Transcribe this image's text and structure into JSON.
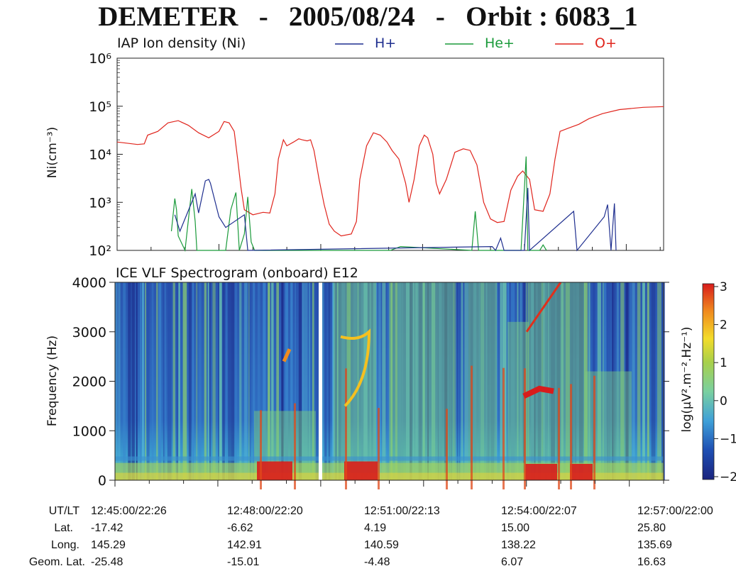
{
  "title": "DEMETER   -   2005/08/24   -   Orbit : 6083_1",
  "ion_panel": {
    "label": "IAP Ion density (Ni)",
    "ylabel": "Ni(cm⁻³)",
    "legend": [
      {
        "name": "H+",
        "color": "#1f2f8f"
      },
      {
        "name": "He+",
        "color": "#1a9a3a"
      },
      {
        "name": "O+",
        "color": "#e0241c"
      }
    ]
  },
  "spec_panel": {
    "label": "ICE VLF Spectrogram (onboard) E12",
    "ylabel": "Frequency (Hz)",
    "colorbar_label": "log(µV².m⁻².Hz⁻¹)",
    "colorbar_ticks": [
      "3",
      "2",
      "1",
      "0",
      "−1",
      "−2"
    ]
  },
  "info_table": {
    "row_labels": [
      "UT/LT",
      "Lat.",
      "Long.",
      "Geom. Lat."
    ],
    "columns": [
      {
        "time": "12:45:00/22:26",
        "lat": "-17.42",
        "long": "145.29",
        "geom": "-25.48"
      },
      {
        "time": "12:48:00/22:20",
        "lat": "-6.62",
        "long": "142.91",
        "geom": "-15.01"
      },
      {
        "time": "12:51:00/22:13",
        "lat": "4.19",
        "long": "140.59",
        "geom": "-4.48"
      },
      {
        "time": "12:54:00/22:07",
        "lat": "15.00",
        "long": "138.22",
        "geom": "6.07"
      },
      {
        "time": "12:57:00/22:00",
        "lat": "25.80",
        "long": "135.69",
        "geom": "16.63"
      }
    ]
  },
  "chart_data": [
    {
      "type": "line",
      "title": "IAP Ion density (Ni)",
      "ylabel": "Ni(cm⁻³)",
      "yscale": "log",
      "ylim": [
        100,
        1000000
      ],
      "y_ticks": [
        "10²",
        "10³",
        "10⁴",
        "10⁵",
        "10⁶"
      ],
      "xlim_minutes": [
        0,
        12
      ],
      "series": [
        {
          "name": "O+",
          "color": "#e0241c",
          "points": [
            [
              0,
              18000
            ],
            [
              0.6,
              16000
            ],
            [
              0.8,
              16500
            ],
            [
              0.9,
              25000
            ],
            [
              1.2,
              30000
            ],
            [
              1.5,
              45000
            ],
            [
              1.8,
              50000
            ],
            [
              2.1,
              40000
            ],
            [
              2.4,
              28000
            ],
            [
              2.7,
              22000
            ],
            [
              3.0,
              30000
            ],
            [
              3.15,
              48000
            ],
            [
              3.3,
              45000
            ],
            [
              3.45,
              30000
            ],
            [
              3.55,
              8000
            ],
            [
              3.65,
              2000
            ],
            [
              3.75,
              700
            ],
            [
              4.0,
              550
            ],
            [
              4.3,
              620
            ],
            [
              4.5,
              600
            ],
            [
              4.65,
              1500
            ],
            [
              4.75,
              8000
            ],
            [
              4.9,
              20000
            ],
            [
              5.0,
              15000
            ],
            [
              5.2,
              18000
            ],
            [
              5.35,
              21000
            ],
            [
              5.45,
              20000
            ],
            [
              5.6,
              19000
            ],
            [
              5.7,
              20000
            ],
            [
              5.8,
              12000
            ],
            [
              5.95,
              3000
            ],
            [
              6.1,
              900
            ],
            [
              6.25,
              350
            ],
            [
              6.4,
              250
            ],
            [
              6.6,
              200
            ],
            [
              6.9,
              220
            ],
            [
              7.05,
              400
            ],
            [
              7.15,
              3000
            ],
            [
              7.35,
              15000
            ],
            [
              7.55,
              28000
            ],
            [
              7.75,
              25000
            ],
            [
              7.95,
              18000
            ],
            [
              8.1,
              12000
            ],
            [
              8.3,
              8000
            ],
            [
              8.5,
              2500
            ],
            [
              8.6,
              1000
            ],
            [
              8.75,
              3000
            ],
            [
              8.9,
              15000
            ],
            [
              9.05,
              25000
            ],
            [
              9.15,
              22000
            ],
            [
              9.3,
              10000
            ],
            [
              9.4,
              2500
            ],
            [
              9.5,
              1500
            ],
            [
              9.7,
              3000
            ],
            [
              9.95,
              11000
            ],
            [
              10.2,
              13000
            ],
            [
              10.4,
              12000
            ],
            [
              10.6,
              6000
            ],
            [
              10.8,
              1000
            ],
            [
              11.0,
              450
            ],
            [
              11.2,
              380
            ],
            [
              11.4,
              400
            ],
            [
              11.6,
              1800
            ],
            [
              11.8,
              3500
            ],
            [
              11.95,
              4500
            ],
            [
              12.15,
              3000
            ],
            [
              12.3,
              700
            ],
            [
              12.55,
              650
            ],
            [
              12.75,
              1500
            ],
            [
              12.9,
              8000
            ],
            [
              13.05,
              30000
            ],
            [
              13.3,
              35000
            ],
            [
              13.6,
              42000
            ],
            [
              13.9,
              55000
            ],
            [
              14.3,
              70000
            ],
            [
              14.8,
              85000
            ],
            [
              15.5,
              95000
            ],
            [
              16.1,
              98000
            ]
          ]
        },
        {
          "name": "He+",
          "color": "#1a9a3a",
          "points": [
            [
              1.6,
              250
            ],
            [
              1.7,
              1200
            ],
            [
              1.75,
              700
            ],
            [
              1.8,
              200
            ],
            [
              2.0,
              100
            ],
            [
              2.2,
              1900
            ],
            [
              2.3,
              400
            ],
            [
              2.35,
              100
            ],
            [
              3.2,
              100
            ],
            [
              3.35,
              700
            ],
            [
              3.5,
              1600
            ],
            [
              3.6,
              100
            ],
            [
              3.75,
              220
            ],
            [
              3.85,
              1300
            ],
            [
              3.95,
              150
            ],
            [
              4.05,
              100
            ],
            [
              8.05,
              100
            ],
            [
              8.35,
              120
            ],
            [
              10.45,
              100
            ],
            [
              10.55,
              650
            ],
            [
              10.65,
              100
            ],
            [
              11.9,
              100
            ],
            [
              12.05,
              9000
            ],
            [
              12.1,
              100
            ],
            [
              12.45,
              100
            ],
            [
              12.55,
              130
            ],
            [
              12.65,
              100
            ]
          ]
        },
        {
          "name": "H+",
          "color": "#1f2f8f",
          "points": [
            [
              1.7,
              550
            ],
            [
              1.85,
              250
            ],
            [
              2.3,
              1500
            ],
            [
              2.4,
              600
            ],
            [
              2.6,
              2800
            ],
            [
              2.7,
              3000
            ],
            [
              2.75,
              2500
            ],
            [
              3.0,
              500
            ],
            [
              3.2,
              300
            ],
            [
              3.75,
              550
            ],
            [
              3.85,
              100
            ],
            [
              11.05,
              120
            ],
            [
              11.15,
              100
            ],
            [
              11.3,
              180
            ],
            [
              11.4,
              100
            ],
            [
              12.0,
              100
            ],
            [
              12.1,
              2000
            ],
            [
              12.15,
              100
            ],
            [
              13.45,
              650
            ],
            [
              13.55,
              100
            ],
            [
              14.35,
              500
            ],
            [
              14.45,
              900
            ],
            [
              14.55,
              100
            ],
            [
              14.65,
              950
            ],
            [
              14.7,
              100
            ]
          ]
        }
      ]
    },
    {
      "type": "heatmap",
      "title": "ICE VLF Spectrogram (onboard) E12",
      "ylabel": "Frequency (Hz)",
      "ylim": [
        0,
        4000
      ],
      "y_ticks": [
        0,
        1000,
        2000,
        3000,
        4000
      ],
      "x_tick_labels": [
        "12:45:00",
        "12:48:00",
        "12:51:00",
        "12:54:00",
        "12:57:00"
      ],
      "colorbar": {
        "label": "log(µV².m⁻².Hz⁻¹)",
        "range": [
          -2,
          3
        ],
        "ticks": [
          -2,
          -1,
          0,
          1,
          2,
          3
        ]
      }
    }
  ]
}
